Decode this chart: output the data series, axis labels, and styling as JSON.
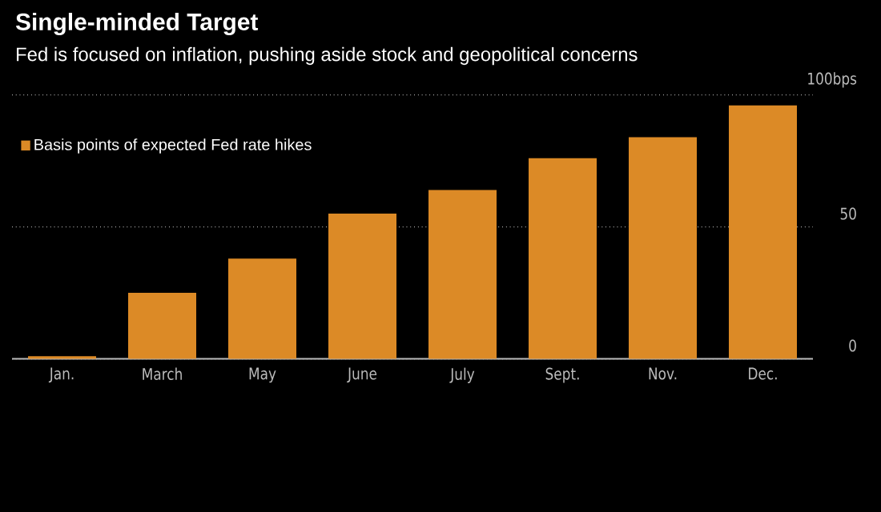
{
  "chart_data": {
    "type": "bar",
    "title": "Single-minded Target",
    "subtitle": "Fed is focused on inflation, pushing aside stock and geopolitical concerns",
    "categories": [
      "Jan.",
      "March",
      "May",
      "June",
      "July",
      "Sept.",
      "Nov.",
      "Dec."
    ],
    "series": [
      {
        "name": "Basis points of expected Fed rate hikes",
        "color": "#dc8a26",
        "values": [
          1,
          25,
          38,
          55,
          64,
          76,
          84,
          96
        ]
      }
    ],
    "ylim": [
      0,
      100
    ],
    "yticks": [
      0,
      50,
      {
        "value": 100,
        "label": "100bps"
      }
    ],
    "grid": "y",
    "legend": "top left"
  }
}
